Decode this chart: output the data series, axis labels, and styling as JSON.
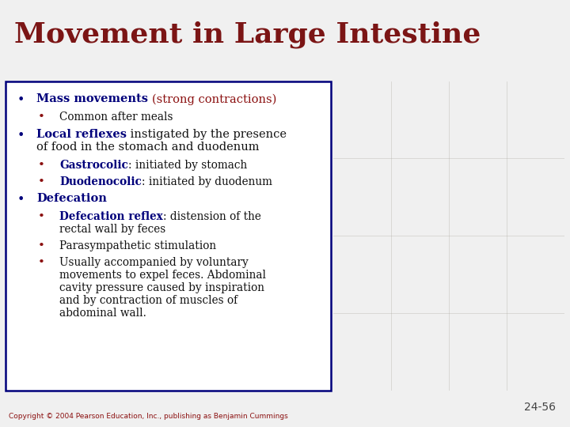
{
  "title": "Movement in Large Intestine",
  "title_color": "#7B1515",
  "title_fontsize": 26,
  "slide_bg": "#f0f0f0",
  "box_bg": "#ffffff",
  "box_border_color": "#00007B",
  "bullet_color_dark": "#00007B",
  "bullet_color_red": "#8B1010",
  "text_color_navy": "#00007B",
  "text_color_black": "#111111",
  "text_color_red": "#8B1010",
  "slide_number": "24-56",
  "copyright": "Copyright © 2004 Pearson Education, Inc., publishing as Benjamin Cummings",
  "title_bg": "#ffffff",
  "sep_color": "#b0b0b0",
  "bullets": [
    {
      "level": 1,
      "parts": [
        {
          "text": "Mass movements ",
          "bold": true,
          "color": "#00007B"
        },
        {
          "text": "(strong contractions)",
          "bold": false,
          "color": "#8B1010"
        }
      ]
    },
    {
      "level": 2,
      "parts": [
        {
          "text": "Common after meals",
          "bold": false,
          "color": "#111111"
        }
      ]
    },
    {
      "level": 1,
      "parts": [
        {
          "text": "Local reflexes",
          "bold": true,
          "color": "#00007B"
        },
        {
          "text": " instigated by the presence\nof food in the stomach and duodenum",
          "bold": false,
          "color": "#111111"
        }
      ]
    },
    {
      "level": 2,
      "parts": [
        {
          "text": "Gastrocolic",
          "bold": true,
          "color": "#00007B"
        },
        {
          "text": ": initiated by stomach",
          "bold": false,
          "color": "#111111"
        }
      ]
    },
    {
      "level": 2,
      "parts": [
        {
          "text": "Duodenocolic",
          "bold": true,
          "color": "#00007B"
        },
        {
          "text": ": initiated by duodenum",
          "bold": false,
          "color": "#111111"
        }
      ]
    },
    {
      "level": 1,
      "parts": [
        {
          "text": "Defecation",
          "bold": true,
          "color": "#00007B"
        }
      ]
    },
    {
      "level": 2,
      "parts": [
        {
          "text": "Defecation reflex",
          "bold": true,
          "color": "#00007B"
        },
        {
          "text": ": distension of the\nrectal wall by feces",
          "bold": false,
          "color": "#111111"
        }
      ]
    },
    {
      "level": 2,
      "parts": [
        {
          "text": "Parasympathetic stimulation",
          "bold": false,
          "color": "#111111"
        }
      ]
    },
    {
      "level": 2,
      "parts": [
        {
          "text": "Usually accompanied by voluntary\nmovements to expel feces. Abdominal\ncavity pressure caused by inspiration\nand by contraction of muscles of\nabdominal wall.",
          "bold": false,
          "color": "#111111"
        }
      ]
    }
  ]
}
